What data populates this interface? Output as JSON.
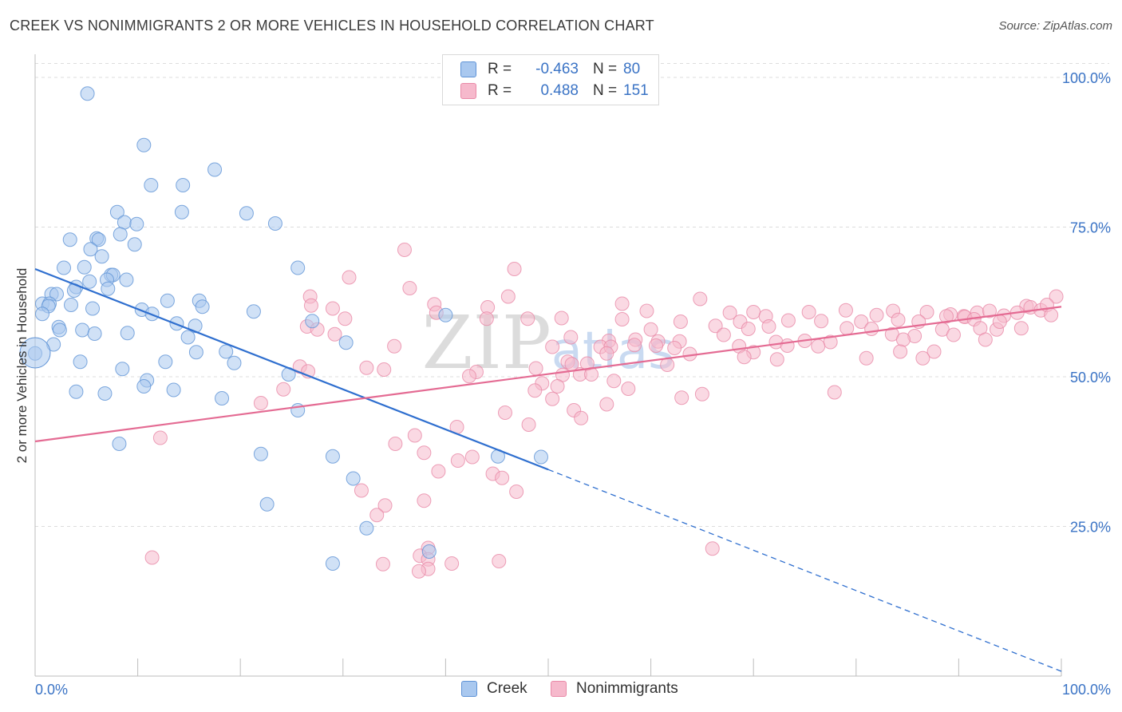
{
  "title": "CREEK VS NONIMMIGRANTS 2 OR MORE VEHICLES IN HOUSEHOLD CORRELATION CHART",
  "source": "Source: ZipAtlas.com",
  "watermark": "ZIPatlas",
  "colors": {
    "creek_fill": "#a9c8ef",
    "creek_stroke": "#5f93d6",
    "creek_line": "#2f6fcf",
    "nonimm_fill": "#f6b9cc",
    "nonimm_stroke": "#e98aa8",
    "nonimm_line": "#e46b93",
    "axis_text": "#3a73c5",
    "grid": "#dddddd"
  },
  "legend": {
    "rows": [
      {
        "r_label": "R =",
        "r_value": "-0.463",
        "n_label": "N =",
        "n_value": "80"
      },
      {
        "r_label": "R =",
        "r_value": "0.488",
        "n_label": "N =",
        "n_value": "151"
      }
    ]
  },
  "bottom_legend": {
    "creek": "Creek",
    "nonimmigrants": "Nonimmigrants"
  },
  "chart_data": {
    "type": "scatter",
    "title": "CREEK VS NONIMMIGRANTS 2 OR MORE VEHICLES IN HOUSEHOLD CORRELATION CHART",
    "xlabel": "",
    "ylabel": "2 or more Vehicles in Household",
    "xlim": [
      0,
      100
    ],
    "ylim": [
      0,
      102
    ],
    "x_tick_labels": [
      "0.0%",
      "100.0%"
    ],
    "y_tick_labels": [
      "25.0%",
      "50.0%",
      "75.0%",
      "100.0%"
    ],
    "y_ticks": [
      25,
      50,
      75,
      100
    ],
    "grid": true,
    "series": [
      {
        "name": "Creek",
        "color": "#a9c8ef",
        "trend": {
          "x0": 0,
          "y0": 68.0,
          "x1": 50,
          "y1": 34.5,
          "dash_to_x": 100,
          "dash_to_y": 0.8
        },
        "points": [
          [
            5.1,
            97.3
          ],
          [
            10.6,
            88.7
          ],
          [
            11.3,
            82.0
          ],
          [
            14.4,
            82.0
          ],
          [
            17.5,
            84.6
          ],
          [
            14.3,
            77.5
          ],
          [
            8.0,
            77.5
          ],
          [
            20.6,
            77.3
          ],
          [
            23.4,
            75.6
          ],
          [
            8.7,
            75.8
          ],
          [
            9.9,
            75.5
          ],
          [
            8.3,
            73.8
          ],
          [
            3.4,
            72.9
          ],
          [
            6.0,
            73.1
          ],
          [
            6.2,
            72.9
          ],
          [
            9.7,
            72.1
          ],
          [
            5.4,
            71.3
          ],
          [
            6.5,
            70.1
          ],
          [
            2.8,
            68.2
          ],
          [
            4.8,
            68.3
          ],
          [
            25.6,
            68.2
          ],
          [
            7.4,
            67.0
          ],
          [
            7.6,
            67.0
          ],
          [
            7.0,
            66.2
          ],
          [
            8.9,
            66.2
          ],
          [
            5.3,
            65.9
          ],
          [
            4.0,
            65.0
          ],
          [
            7.1,
            64.7
          ],
          [
            3.8,
            64.4
          ],
          [
            1.6,
            63.8
          ],
          [
            2.1,
            63.8
          ],
          [
            0.7,
            62.2
          ],
          [
            1.4,
            62.2
          ],
          [
            3.5,
            62.0
          ],
          [
            12.9,
            62.7
          ],
          [
            16.0,
            62.7
          ],
          [
            1.3,
            61.8
          ],
          [
            5.6,
            61.4
          ],
          [
            10.4,
            61.2
          ],
          [
            16.3,
            61.7
          ],
          [
            21.3,
            60.9
          ],
          [
            0.7,
            60.5
          ],
          [
            11.4,
            60.5
          ],
          [
            40.0,
            60.3
          ],
          [
            27.0,
            59.3
          ],
          [
            13.8,
            58.9
          ],
          [
            2.3,
            58.3
          ],
          [
            2.4,
            57.8
          ],
          [
            4.6,
            57.8
          ],
          [
            15.6,
            58.5
          ],
          [
            5.8,
            57.2
          ],
          [
            9.0,
            57.3
          ],
          [
            14.9,
            56.6
          ],
          [
            1.8,
            55.4
          ],
          [
            30.3,
            55.7
          ],
          [
            15.7,
            54.1
          ],
          [
            18.6,
            54.2
          ],
          [
            0.0,
            53.9
          ],
          [
            4.4,
            52.5
          ],
          [
            12.7,
            52.5
          ],
          [
            19.4,
            52.3
          ],
          [
            8.5,
            51.3
          ],
          [
            24.7,
            50.4
          ],
          [
            10.9,
            49.4
          ],
          [
            10.6,
            48.4
          ],
          [
            13.5,
            47.8
          ],
          [
            4.0,
            47.5
          ],
          [
            6.8,
            47.2
          ],
          [
            18.2,
            46.4
          ],
          [
            25.6,
            44.4
          ],
          [
            8.2,
            38.8
          ],
          [
            22.0,
            37.1
          ],
          [
            45.1,
            36.7
          ],
          [
            31.0,
            33.0
          ],
          [
            22.6,
            28.7
          ],
          [
            32.3,
            24.7
          ],
          [
            38.4,
            20.8
          ],
          [
            29.0,
            18.8
          ],
          [
            49.3,
            36.6
          ],
          [
            29.0,
            36.7
          ]
        ]
      },
      {
        "name": "Nonimmigrants",
        "color": "#f6b9cc",
        "trend": {
          "x0": 0,
          "y0": 39.2,
          "x1": 100,
          "y1": 61.7
        },
        "points": [
          [
            36.0,
            71.2
          ],
          [
            46.7,
            68.0
          ],
          [
            30.6,
            66.6
          ],
          [
            36.5,
            64.8
          ],
          [
            26.8,
            63.4
          ],
          [
            46.1,
            63.4
          ],
          [
            64.8,
            63.0
          ],
          [
            57.2,
            62.2
          ],
          [
            99.5,
            63.4
          ],
          [
            38.9,
            62.1
          ],
          [
            44.1,
            61.6
          ],
          [
            26.9,
            61.9
          ],
          [
            29.0,
            61.4
          ],
          [
            96.6,
            61.8
          ],
          [
            97.0,
            61.6
          ],
          [
            39.1,
            60.7
          ],
          [
            75.4,
            60.8
          ],
          [
            89.2,
            60.4
          ],
          [
            59.6,
            61.0
          ],
          [
            67.7,
            60.7
          ],
          [
            70.0,
            60.8
          ],
          [
            79.0,
            61.1
          ],
          [
            83.6,
            61.0
          ],
          [
            91.8,
            60.7
          ],
          [
            93.0,
            61.0
          ],
          [
            86.9,
            60.8
          ],
          [
            88.8,
            60.1
          ],
          [
            94.4,
            60.2
          ],
          [
            48.0,
            59.7
          ],
          [
            51.3,
            59.8
          ],
          [
            57.2,
            59.6
          ],
          [
            71.2,
            60.1
          ],
          [
            82.0,
            60.3
          ],
          [
            90.5,
            60.1
          ],
          [
            90.6,
            60.0
          ],
          [
            95.7,
            60.7
          ],
          [
            98.0,
            61.1
          ],
          [
            98.6,
            62.0
          ],
          [
            44.0,
            59.7
          ],
          [
            30.2,
            59.7
          ],
          [
            84.1,
            59.5
          ],
          [
            62.9,
            59.2
          ],
          [
            68.7,
            59.2
          ],
          [
            73.4,
            59.4
          ],
          [
            76.6,
            59.3
          ],
          [
            80.5,
            59.2
          ],
          [
            86.1,
            59.2
          ],
          [
            91.5,
            59.6
          ],
          [
            26.5,
            58.4
          ],
          [
            27.5,
            57.9
          ],
          [
            60.0,
            57.9
          ],
          [
            66.3,
            58.5
          ],
          [
            69.5,
            58.0
          ],
          [
            71.5,
            58.4
          ],
          [
            79.1,
            58.1
          ],
          [
            81.5,
            58.0
          ],
          [
            88.4,
            57.9
          ],
          [
            92.1,
            58.1
          ],
          [
            93.7,
            57.9
          ],
          [
            29.2,
            57.1
          ],
          [
            52.2,
            56.6
          ],
          [
            67.1,
            57.0
          ],
          [
            83.5,
            57.1
          ],
          [
            96.1,
            58.1
          ],
          [
            85.7,
            56.8
          ],
          [
            58.5,
            56.2
          ],
          [
            60.7,
            55.9
          ],
          [
            62.8,
            55.9
          ],
          [
            72.2,
            55.8
          ],
          [
            75.0,
            56.0
          ],
          [
            77.5,
            55.8
          ],
          [
            84.6,
            56.2
          ],
          [
            92.6,
            56.2
          ],
          [
            55.9,
            56.0
          ],
          [
            35.0,
            55.1
          ],
          [
            50.4,
            55.0
          ],
          [
            55.1,
            55.0
          ],
          [
            56.1,
            55.0
          ],
          [
            58.4,
            55.3
          ],
          [
            60.5,
            55.2
          ],
          [
            62.3,
            54.8
          ],
          [
            68.6,
            55.1
          ],
          [
            73.3,
            55.2
          ],
          [
            76.3,
            55.1
          ],
          [
            87.6,
            54.2
          ],
          [
            70.0,
            54.1
          ],
          [
            84.3,
            54.2
          ],
          [
            63.8,
            53.8
          ],
          [
            69.1,
            53.3
          ],
          [
            72.3,
            52.9
          ],
          [
            51.9,
            52.5
          ],
          [
            52.3,
            52.1
          ],
          [
            53.8,
            52.2
          ],
          [
            61.6,
            52.0
          ],
          [
            32.3,
            51.5
          ],
          [
            25.8,
            51.7
          ],
          [
            26.6,
            50.9
          ],
          [
            34.0,
            51.2
          ],
          [
            48.8,
            51.4
          ],
          [
            51.4,
            50.3
          ],
          [
            53.1,
            50.4
          ],
          [
            54.2,
            50.4
          ],
          [
            56.4,
            49.3
          ],
          [
            49.4,
            48.9
          ],
          [
            50.9,
            48.4
          ],
          [
            48.7,
            47.7
          ],
          [
            57.8,
            48.0
          ],
          [
            65.0,
            47.1
          ],
          [
            77.9,
            47.4
          ],
          [
            24.2,
            47.9
          ],
          [
            22.0,
            45.6
          ],
          [
            55.7,
            45.4
          ],
          [
            52.5,
            44.4
          ],
          [
            45.8,
            44.0
          ],
          [
            53.2,
            43.1
          ],
          [
            48.1,
            42.0
          ],
          [
            41.1,
            41.6
          ],
          [
            37.0,
            40.2
          ],
          [
            12.2,
            39.8
          ],
          [
            35.1,
            38.8
          ],
          [
            37.9,
            37.3
          ],
          [
            41.2,
            36.0
          ],
          [
            42.6,
            36.6
          ],
          [
            44.6,
            33.8
          ],
          [
            45.5,
            33.1
          ],
          [
            39.3,
            34.2
          ],
          [
            31.8,
            31.0
          ],
          [
            46.9,
            30.8
          ],
          [
            37.9,
            29.3
          ],
          [
            34.1,
            28.5
          ],
          [
            33.3,
            26.9
          ],
          [
            38.3,
            21.4
          ],
          [
            37.5,
            20.1
          ],
          [
            38.3,
            19.5
          ],
          [
            11.4,
            19.8
          ],
          [
            45.2,
            19.2
          ],
          [
            40.6,
            18.8
          ],
          [
            38.3,
            17.9
          ],
          [
            33.9,
            18.7
          ],
          [
            37.4,
            17.5
          ],
          [
            50.4,
            46.3
          ],
          [
            63.0,
            46.5
          ],
          [
            66.0,
            21.3
          ],
          [
            81.0,
            53.1
          ],
          [
            86.5,
            53.1
          ],
          [
            89.5,
            57.0
          ],
          [
            94.0,
            59.2
          ],
          [
            99.0,
            60.3
          ],
          [
            43.0,
            50.8
          ],
          [
            42.3,
            50.1
          ],
          [
            55.7,
            53.9
          ]
        ]
      }
    ]
  }
}
